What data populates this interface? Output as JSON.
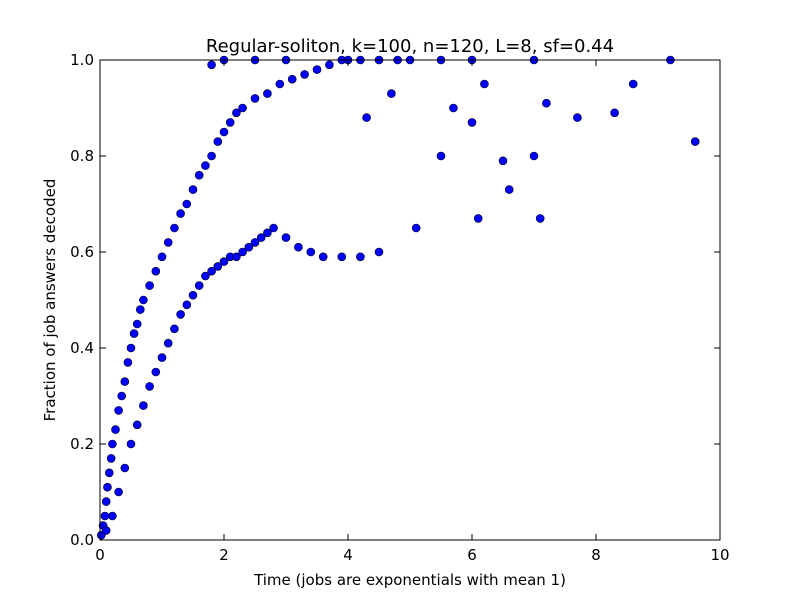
{
  "chart_data": {
    "type": "scatter",
    "title": "Regular-soliton, k=100, n=120, L=8, sf=0.44",
    "xlabel": "Time (jobs are exponentials with mean 1)",
    "ylabel": "Fraction of job answers decoded",
    "xlim": [
      0,
      10
    ],
    "ylim": [
      0,
      1.0
    ],
    "x_ticks": [
      "0",
      "2",
      "4",
      "6",
      "8",
      "10"
    ],
    "y_ticks": [
      "0.0",
      "0.2",
      "0.4",
      "0.6",
      "0.8",
      "1.0"
    ],
    "grid": false,
    "legend": "none",
    "marker_color": "#0000ff",
    "series": [
      {
        "points": [
          [
            0.02,
            0.01
          ],
          [
            0.05,
            0.03
          ],
          [
            0.08,
            0.05
          ],
          [
            0.1,
            0.08
          ],
          [
            0.12,
            0.11
          ],
          [
            0.15,
            0.14
          ],
          [
            0.18,
            0.17
          ],
          [
            0.2,
            0.2
          ],
          [
            0.25,
            0.23
          ],
          [
            0.3,
            0.27
          ],
          [
            0.35,
            0.3
          ],
          [
            0.4,
            0.33
          ],
          [
            0.45,
            0.37
          ],
          [
            0.5,
            0.4
          ],
          [
            0.55,
            0.43
          ],
          [
            0.6,
            0.45
          ],
          [
            0.65,
            0.48
          ],
          [
            0.7,
            0.5
          ],
          [
            0.8,
            0.53
          ],
          [
            0.9,
            0.56
          ],
          [
            1.0,
            0.59
          ],
          [
            1.1,
            0.62
          ],
          [
            1.2,
            0.65
          ],
          [
            1.3,
            0.68
          ],
          [
            1.4,
            0.7
          ],
          [
            1.5,
            0.73
          ],
          [
            1.6,
            0.76
          ],
          [
            1.7,
            0.78
          ],
          [
            1.8,
            0.8
          ],
          [
            1.9,
            0.83
          ],
          [
            2.0,
            0.85
          ],
          [
            2.1,
            0.87
          ],
          [
            2.2,
            0.89
          ],
          [
            2.3,
            0.9
          ],
          [
            2.5,
            0.92
          ],
          [
            2.7,
            0.93
          ],
          [
            2.9,
            0.95
          ],
          [
            3.1,
            0.96
          ],
          [
            3.3,
            0.97
          ],
          [
            3.5,
            0.98
          ],
          [
            3.7,
            0.99
          ],
          [
            3.9,
            1.0
          ],
          [
            4.2,
            1.0
          ],
          [
            4.5,
            1.0
          ],
          [
            5.0,
            1.0
          ],
          [
            5.5,
            1.0
          ],
          [
            6.0,
            1.0
          ],
          [
            7.0,
            1.0
          ],
          [
            1.8,
            0.99
          ],
          [
            2.0,
            1.0
          ],
          [
            2.5,
            1.0
          ],
          [
            3.0,
            1.0
          ],
          [
            4.0,
            1.0
          ],
          [
            4.8,
            1.0
          ],
          [
            0.1,
            0.02
          ],
          [
            0.2,
            0.05
          ],
          [
            0.3,
            0.1
          ],
          [
            0.4,
            0.15
          ],
          [
            0.5,
            0.2
          ],
          [
            0.6,
            0.24
          ],
          [
            0.7,
            0.28
          ],
          [
            0.8,
            0.32
          ],
          [
            0.9,
            0.35
          ],
          [
            1.0,
            0.38
          ],
          [
            1.1,
            0.41
          ],
          [
            1.2,
            0.44
          ],
          [
            1.3,
            0.47
          ],
          [
            1.4,
            0.49
          ],
          [
            1.5,
            0.51
          ],
          [
            1.6,
            0.53
          ],
          [
            1.7,
            0.55
          ],
          [
            1.8,
            0.56
          ],
          [
            1.9,
            0.57
          ],
          [
            2.0,
            0.58
          ],
          [
            2.1,
            0.59
          ],
          [
            2.2,
            0.59
          ],
          [
            2.3,
            0.6
          ],
          [
            2.4,
            0.61
          ],
          [
            2.5,
            0.62
          ],
          [
            2.6,
            0.63
          ],
          [
            2.7,
            0.64
          ],
          [
            2.8,
            0.65
          ],
          [
            3.0,
            0.63
          ],
          [
            3.2,
            0.61
          ],
          [
            3.4,
            0.6
          ],
          [
            3.6,
            0.59
          ],
          [
            3.9,
            0.59
          ],
          [
            4.2,
            0.59
          ],
          [
            4.5,
            0.6
          ],
          [
            5.1,
            0.65
          ],
          [
            6.1,
            0.67
          ],
          [
            7.1,
            0.67
          ],
          [
            6.6,
            0.73
          ],
          [
            5.5,
            0.8
          ],
          [
            6.0,
            0.87
          ],
          [
            6.5,
            0.79
          ],
          [
            7.0,
            0.8
          ],
          [
            7.7,
            0.88
          ],
          [
            8.3,
            0.89
          ],
          [
            8.6,
            0.95
          ],
          [
            9.2,
            1.0
          ],
          [
            9.6,
            0.83
          ],
          [
            7.2,
            0.91
          ],
          [
            6.2,
            0.95
          ],
          [
            5.7,
            0.9
          ],
          [
            4.7,
            0.93
          ],
          [
            4.3,
            0.88
          ]
        ]
      }
    ]
  }
}
